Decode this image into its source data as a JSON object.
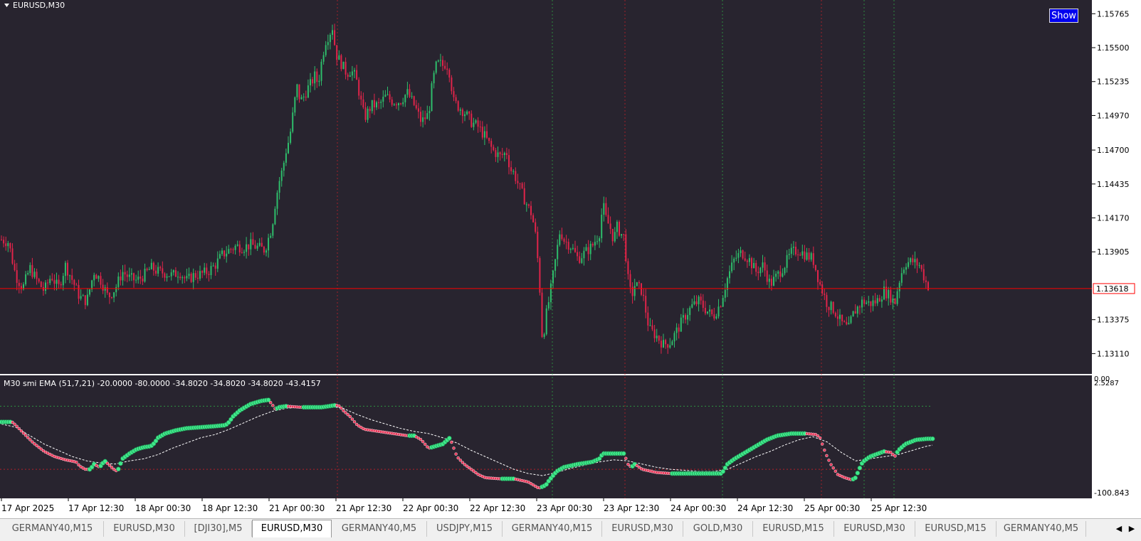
{
  "chart_header": {
    "symbol_label": "EURUSD,M30"
  },
  "show_button": {
    "label": "Show"
  },
  "current_price": "1.13618",
  "colors": {
    "background": "#28242f",
    "bull": "#2ebd6b",
    "bear": "#e0244a",
    "grid_green": "#2ea043",
    "grid_red": "#c0202a",
    "price_line": "#ff0000",
    "smi_up": "#3ee88a",
    "smi_down": "#e83a5c"
  },
  "indicator": {
    "label": "M30 smi  EMA (51,7,21) -20.0000 -80.0000 -34.8020 -34.8020 -34.8020 -43.4157",
    "top_label": "2.5287",
    "top_label_overlap": "0.00",
    "bottom_label": "-100.843"
  },
  "chart_data": {
    "type": "candlestick",
    "title": "EURUSD,M30",
    "price_axis_ticks": [
      "1.15765",
      "1.15500",
      "1.15235",
      "1.14970",
      "1.14700",
      "1.14435",
      "1.14170",
      "1.13905",
      "1.13375",
      "1.13110"
    ],
    "time_axis_ticks": [
      "17 Apr 2025",
      "17 Apr 12:30",
      "18 Apr 00:30",
      "18 Apr 12:30",
      "21 Apr 00:30",
      "21 Apr 12:30",
      "22 Apr 00:30",
      "22 Apr 12:30",
      "23 Apr 00:30",
      "23 Apr 12:30",
      "24 Apr 00:30",
      "24 Apr 12:30",
      "25 Apr 00:30",
      "25 Apr 12:30"
    ],
    "price_range": [
      1.1304,
      1.1585
    ],
    "close_path": [
      [
        0,
        1.14
      ],
      [
        10,
        1.1398
      ],
      [
        20,
        1.1372
      ],
      [
        30,
        1.1362
      ],
      [
        40,
        1.1378
      ],
      [
        50,
        1.1368
      ],
      [
        60,
        1.136
      ],
      [
        70,
        1.1372
      ],
      [
        80,
        1.1362
      ],
      [
        90,
        1.138
      ],
      [
        100,
        1.1368
      ],
      [
        110,
        1.1355
      ],
      [
        120,
        1.1352
      ],
      [
        130,
        1.1375
      ],
      [
        140,
        1.1368
      ],
      [
        150,
        1.1355
      ],
      [
        160,
        1.1362
      ],
      [
        170,
        1.1375
      ],
      [
        180,
        1.137
      ],
      [
        190,
        1.1368
      ],
      [
        200,
        1.1372
      ],
      [
        210,
        1.1378
      ],
      [
        220,
        1.1375
      ],
      [
        230,
        1.1374
      ],
      [
        240,
        1.1372
      ],
      [
        250,
        1.1375
      ],
      [
        260,
        1.1368
      ],
      [
        270,
        1.1372
      ],
      [
        280,
        1.1373
      ],
      [
        290,
        1.1375
      ],
      [
        300,
        1.138
      ],
      [
        310,
        1.1388
      ],
      [
        320,
        1.1392
      ],
      [
        330,
        1.1395
      ],
      [
        340,
        1.1394
      ],
      [
        350,
        1.1396
      ],
      [
        360,
        1.1394
      ],
      [
        370,
        1.1392
      ],
      [
        380,
        1.141
      ],
      [
        385,
        1.143
      ],
      [
        390,
        1.1445
      ],
      [
        395,
        1.1455
      ],
      [
        400,
        1.147
      ],
      [
        405,
        1.148
      ],
      [
        410,
        1.15
      ],
      [
        415,
        1.152
      ],
      [
        420,
        1.1508
      ],
      [
        425,
        1.1512
      ],
      [
        430,
        1.1518
      ],
      [
        435,
        1.1522
      ],
      [
        440,
        1.1528
      ],
      [
        445,
        1.1522
      ],
      [
        450,
        1.154
      ],
      [
        455,
        1.1555
      ],
      [
        460,
        1.156
      ],
      [
        465,
        1.1566
      ],
      [
        470,
        1.1545
      ],
      [
        475,
        1.154
      ],
      [
        480,
        1.1535
      ],
      [
        485,
        1.153
      ],
      [
        490,
        1.1532
      ],
      [
        495,
        1.153
      ],
      [
        500,
        1.1522
      ],
      [
        505,
        1.1508
      ],
      [
        510,
        1.1495
      ],
      [
        520,
        1.1505
      ],
      [
        530,
        1.1505
      ],
      [
        540,
        1.1512
      ],
      [
        550,
        1.1508
      ],
      [
        560,
        1.1508
      ],
      [
        570,
        1.1515
      ],
      [
        580,
        1.1505
      ],
      [
        590,
        1.1492
      ],
      [
        600,
        1.1498
      ],
      [
        605,
        1.152
      ],
      [
        610,
        1.1535
      ],
      [
        615,
        1.1538
      ],
      [
        620,
        1.1536
      ],
      [
        625,
        1.1538
      ],
      [
        630,
        1.153
      ],
      [
        635,
        1.1508
      ],
      [
        640,
        1.1505
      ],
      [
        650,
        1.15
      ],
      [
        660,
        1.1492
      ],
      [
        670,
        1.1488
      ],
      [
        680,
        1.148
      ],
      [
        690,
        1.147
      ],
      [
        700,
        1.1465
      ],
      [
        710,
        1.1468
      ],
      [
        715,
        1.1455
      ],
      [
        720,
        1.1452
      ],
      [
        730,
        1.1438
      ],
      [
        740,
        1.1425
      ],
      [
        745,
        1.142
      ],
      [
        750,
        1.1405
      ],
      [
        755,
        1.1375
      ],
      [
        758,
        1.1345
      ],
      [
        760,
        1.132
      ],
      [
        765,
        1.134
      ],
      [
        770,
        1.1355
      ],
      [
        775,
        1.1372
      ],
      [
        780,
        1.139
      ],
      [
        785,
        1.1408
      ],
      [
        790,
        1.14
      ],
      [
        800,
        1.1395
      ],
      [
        810,
        1.1385
      ],
      [
        820,
        1.139
      ],
      [
        830,
        1.1395
      ],
      [
        840,
        1.1405
      ],
      [
        845,
        1.1428
      ],
      [
        850,
        1.1415
      ],
      [
        855,
        1.141
      ],
      [
        860,
        1.14
      ],
      [
        865,
        1.141
      ],
      [
        870,
        1.1405
      ],
      [
        875,
        1.1402
      ],
      [
        880,
        1.137
      ],
      [
        885,
        1.1355
      ],
      [
        890,
        1.1365
      ],
      [
        900,
        1.136
      ],
      [
        910,
        1.133
      ],
      [
        920,
        1.1325
      ],
      [
        930,
        1.1318
      ],
      [
        940,
        1.132
      ],
      [
        950,
        1.133
      ],
      [
        960,
        1.134
      ],
      [
        970,
        1.1348
      ],
      [
        980,
        1.1352
      ],
      [
        990,
        1.1345
      ],
      [
        1000,
        1.134
      ],
      [
        1010,
        1.135
      ],
      [
        1020,
        1.137
      ],
      [
        1030,
        1.1385
      ],
      [
        1040,
        1.139
      ],
      [
        1050,
        1.1385
      ],
      [
        1060,
        1.1375
      ],
      [
        1070,
        1.138
      ],
      [
        1080,
        1.1365
      ],
      [
        1090,
        1.1372
      ],
      [
        1100,
        1.138
      ],
      [
        1110,
        1.139
      ],
      [
        1120,
        1.1392
      ],
      [
        1130,
        1.1388
      ],
      [
        1140,
        1.1385
      ],
      [
        1150,
        1.1365
      ],
      [
        1160,
        1.135
      ],
      [
        1170,
        1.1345
      ],
      [
        1180,
        1.1335
      ],
      [
        1190,
        1.133
      ],
      [
        1195,
        1.134
      ],
      [
        1200,
        1.1345
      ],
      [
        1210,
        1.1352
      ],
      [
        1220,
        1.135
      ],
      [
        1230,
        1.1352
      ],
      [
        1240,
        1.136
      ],
      [
        1250,
        1.1355
      ],
      [
        1255,
        1.135
      ],
      [
        1260,
        1.1365
      ],
      [
        1265,
        1.1375
      ],
      [
        1270,
        1.1382
      ],
      [
        1280,
        1.1383
      ],
      [
        1290,
        1.138
      ],
      [
        1300,
        1.1365
      ],
      [
        1305,
        1.1362
      ]
    ],
    "indicator_range": [
      -100.843,
      2.5287
    ],
    "indicator_levels": [
      -20,
      -80
    ],
    "smi_path": [
      [
        0,
        -35
      ],
      [
        15,
        -35
      ],
      [
        20,
        -38
      ],
      [
        30,
        -45
      ],
      [
        45,
        -55
      ],
      [
        60,
        -63
      ],
      [
        75,
        -68
      ],
      [
        90,
        -71
      ],
      [
        105,
        -73
      ],
      [
        110,
        -77
      ],
      [
        118,
        -80
      ],
      [
        125,
        -80
      ],
      [
        130,
        -75
      ],
      [
        138,
        -78
      ],
      [
        145,
        -72
      ],
      [
        150,
        -75
      ],
      [
        158,
        -80
      ],
      [
        163,
        -82
      ],
      [
        170,
        -70
      ],
      [
        180,
        -65
      ],
      [
        190,
        -61
      ],
      [
        200,
        -59
      ],
      [
        210,
        -58
      ],
      [
        215,
        -55
      ],
      [
        220,
        -50
      ],
      [
        230,
        -46
      ],
      [
        245,
        -43
      ],
      [
        260,
        -41
      ],
      [
        280,
        -40
      ],
      [
        300,
        -39
      ],
      [
        315,
        -38
      ],
      [
        320,
        -35
      ],
      [
        325,
        -30
      ],
      [
        335,
        -24
      ],
      [
        350,
        -18
      ],
      [
        365,
        -15
      ],
      [
        375,
        -14
      ],
      [
        380,
        -18
      ],
      [
        385,
        -23
      ],
      [
        390,
        -21
      ],
      [
        400,
        -20
      ],
      [
        420,
        -21
      ],
      [
        450,
        -21
      ],
      [
        470,
        -19
      ],
      [
        475,
        -20
      ],
      [
        480,
        -24
      ],
      [
        490,
        -30
      ],
      [
        500,
        -38
      ],
      [
        510,
        -42
      ],
      [
        530,
        -44
      ],
      [
        550,
        -46
      ],
      [
        570,
        -48
      ],
      [
        580,
        -48
      ],
      [
        590,
        -52
      ],
      [
        600,
        -60
      ],
      [
        610,
        -58
      ],
      [
        620,
        -56
      ],
      [
        630,
        -50
      ],
      [
        640,
        -68
      ],
      [
        650,
        -75
      ],
      [
        660,
        -80
      ],
      [
        670,
        -85
      ],
      [
        680,
        -88
      ],
      [
        700,
        -89
      ],
      [
        720,
        -89
      ],
      [
        740,
        -92
      ],
      [
        755,
        -98
      ],
      [
        765,
        -95
      ],
      [
        770,
        -90
      ],
      [
        780,
        -82
      ],
      [
        790,
        -78
      ],
      [
        810,
        -75
      ],
      [
        830,
        -73
      ],
      [
        840,
        -70
      ],
      [
        845,
        -65
      ],
      [
        860,
        -65
      ],
      [
        875,
        -65
      ],
      [
        880,
        -75
      ],
      [
        885,
        -78
      ],
      [
        890,
        -75
      ],
      [
        900,
        -80
      ],
      [
        920,
        -83
      ],
      [
        940,
        -84
      ],
      [
        960,
        -84
      ],
      [
        980,
        -84
      ],
      [
        1000,
        -84
      ],
      [
        1012,
        -84
      ],
      [
        1020,
        -75
      ],
      [
        1030,
        -70
      ],
      [
        1045,
        -64
      ],
      [
        1060,
        -58
      ],
      [
        1075,
        -52
      ],
      [
        1090,
        -48
      ],
      [
        1110,
        -46
      ],
      [
        1130,
        -46
      ],
      [
        1145,
        -47
      ],
      [
        1150,
        -50
      ],
      [
        1158,
        -65
      ],
      [
        1165,
        -75
      ],
      [
        1175,
        -85
      ],
      [
        1185,
        -88
      ],
      [
        1195,
        -90
      ],
      [
        1200,
        -88
      ],
      [
        1205,
        -80
      ],
      [
        1210,
        -73
      ],
      [
        1220,
        -68
      ],
      [
        1240,
        -63
      ],
      [
        1250,
        -64
      ],
      [
        1255,
        -68
      ],
      [
        1260,
        -62
      ],
      [
        1270,
        -56
      ],
      [
        1285,
        -52
      ],
      [
        1300,
        -51
      ],
      [
        1310,
        -51
      ]
    ],
    "signal_path": [
      [
        0,
        -37
      ],
      [
        20,
        -40
      ],
      [
        40,
        -48
      ],
      [
        60,
        -56
      ],
      [
        80,
        -62
      ],
      [
        100,
        -68
      ],
      [
        120,
        -72
      ],
      [
        140,
        -74
      ],
      [
        160,
        -75
      ],
      [
        180,
        -72
      ],
      [
        200,
        -70
      ],
      [
        220,
        -66
      ],
      [
        240,
        -60
      ],
      [
        260,
        -55
      ],
      [
        280,
        -50
      ],
      [
        300,
        -47
      ],
      [
        320,
        -42
      ],
      [
        340,
        -36
      ],
      [
        360,
        -30
      ],
      [
        380,
        -25
      ],
      [
        400,
        -22
      ],
      [
        420,
        -21
      ],
      [
        440,
        -21
      ],
      [
        460,
        -20
      ],
      [
        480,
        -22
      ],
      [
        500,
        -28
      ],
      [
        520,
        -33
      ],
      [
        540,
        -37
      ],
      [
        560,
        -41
      ],
      [
        580,
        -44
      ],
      [
        600,
        -46
      ],
      [
        620,
        -50
      ],
      [
        640,
        -55
      ],
      [
        660,
        -62
      ],
      [
        680,
        -68
      ],
      [
        700,
        -74
      ],
      [
        720,
        -80
      ],
      [
        740,
        -84
      ],
      [
        760,
        -86
      ],
      [
        780,
        -83
      ],
      [
        800,
        -79
      ],
      [
        820,
        -76
      ],
      [
        840,
        -73
      ],
      [
        860,
        -71
      ],
      [
        880,
        -72
      ],
      [
        900,
        -75
      ],
      [
        920,
        -78
      ],
      [
        940,
        -80
      ],
      [
        960,
        -81
      ],
      [
        980,
        -82
      ],
      [
        1000,
        -82
      ],
      [
        1020,
        -80
      ],
      [
        1040,
        -74
      ],
      [
        1060,
        -68
      ],
      [
        1080,
        -63
      ],
      [
        1100,
        -57
      ],
      [
        1120,
        -52
      ],
      [
        1140,
        -49
      ],
      [
        1160,
        -54
      ],
      [
        1180,
        -64
      ],
      [
        1200,
        -72
      ],
      [
        1220,
        -70
      ],
      [
        1240,
        -68
      ],
      [
        1260,
        -66
      ],
      [
        1280,
        -62
      ],
      [
        1300,
        -58
      ],
      [
        1308,
        -57
      ]
    ]
  },
  "tabs": [
    {
      "label": "GERMANY40,M15",
      "active": false
    },
    {
      "label": "EURUSD,M30",
      "active": false
    },
    {
      "label": "[DJI30],M5",
      "active": false
    },
    {
      "label": "EURUSD,M30",
      "active": true
    },
    {
      "label": "GERMANY40,M5",
      "active": false
    },
    {
      "label": "USDJPY,M15",
      "active": false
    },
    {
      "label": "GERMANY40,M15",
      "active": false
    },
    {
      "label": "EURUSD,M30",
      "active": false
    },
    {
      "label": "GOLD,M30",
      "active": false
    },
    {
      "label": "EURUSD,M15",
      "active": false
    },
    {
      "label": "EURUSD,M30",
      "active": false
    },
    {
      "label": "EURUSD,M15",
      "active": false
    },
    {
      "label": "GERMANY40,M5",
      "active": false
    }
  ]
}
